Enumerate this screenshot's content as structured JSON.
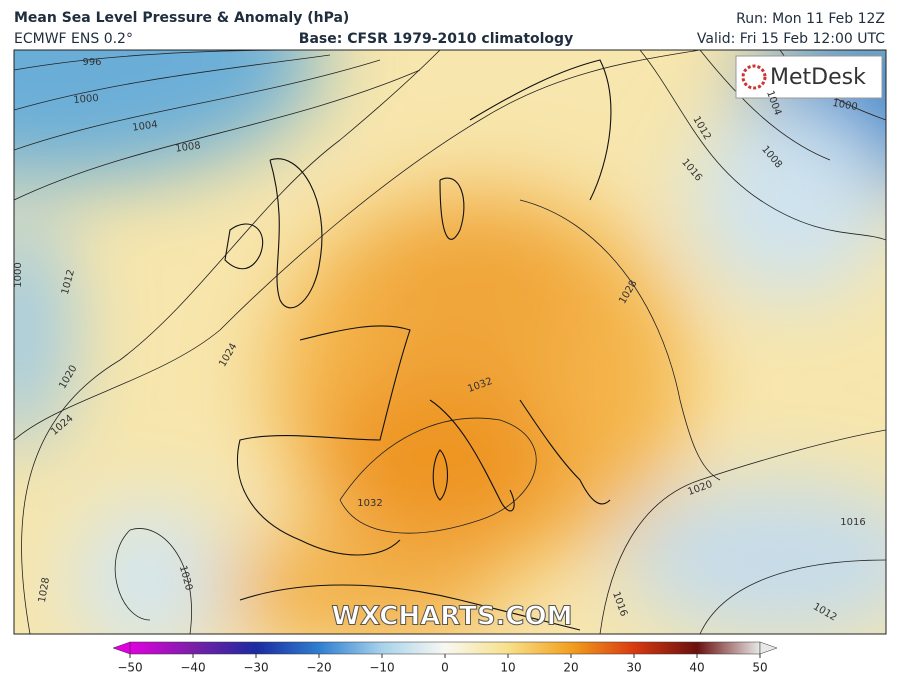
{
  "header": {
    "title": "Mean Sea Level Pressure & Anomaly (hPa)",
    "model": "ECMWF ENS 0.2°",
    "base": "Base: CFSR 1979-2010 climatology",
    "run": "Run: Mon 11 Feb 12Z",
    "valid": "Valid: Fri 15 Feb 12:00 UTC"
  },
  "map": {
    "logo": "MetDesk",
    "watermark": "WXCHARTS.COM",
    "isobar_labels": [
      996,
      1000,
      1004,
      1008,
      1012,
      1000,
      1020,
      1024,
      1024,
      1028,
      1020,
      1032,
      1032,
      1028,
      1016,
      1012,
      1008,
      1004,
      1000,
      1020,
      1016,
      1012,
      1016
    ]
  },
  "colorbar": {
    "lim": [
      -50,
      50
    ],
    "ticks": [
      {
        "value": -50,
        "label": "−50"
      },
      {
        "value": -40,
        "label": "−40"
      },
      {
        "value": -30,
        "label": "−30"
      },
      {
        "value": -20,
        "label": "−20"
      },
      {
        "value": -10,
        "label": "−10"
      },
      0,
      10,
      20,
      30,
      40,
      50
    ]
  }
}
